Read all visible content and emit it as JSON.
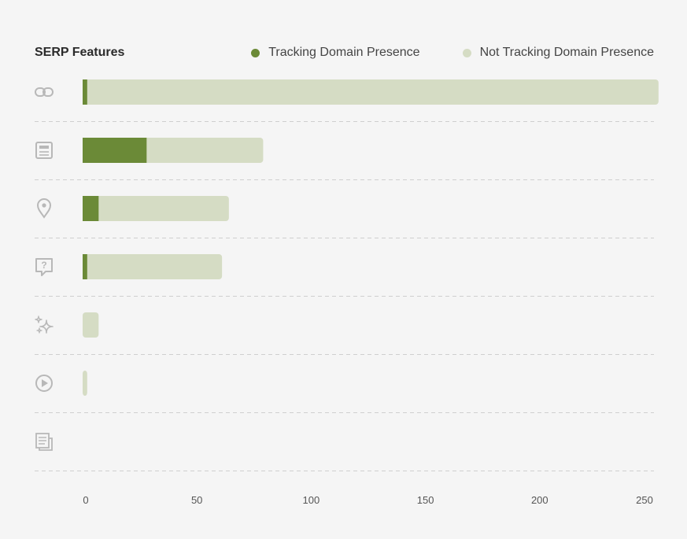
{
  "title": "SERP Features",
  "legend": [
    {
      "label": "Tracking Domain Presence",
      "color": "#6b8a37"
    },
    {
      "label": "Not Tracking Domain Presence",
      "color": "#d5dcc4"
    }
  ],
  "colors": {
    "tracking": "#6b8a37",
    "not_tracking": "#d5dcc4",
    "icon": "#b8b8b8",
    "grid": "#cfcfcf"
  },
  "chart_data": {
    "type": "bar",
    "orientation": "horizontal",
    "stacked": true,
    "title": "SERP Features",
    "categories": [
      "link-icon",
      "article-icon",
      "location-pin-icon",
      "question-icon",
      "sparkle-icon",
      "video-icon",
      "news-icon"
    ],
    "series": [
      {
        "name": "Tracking Domain Presence",
        "values": [
          2,
          28,
          7,
          2,
          0,
          0,
          0
        ]
      },
      {
        "name": "Not Tracking Domain Presence",
        "values": [
          250,
          51,
          57,
          59,
          7,
          2,
          0
        ]
      }
    ],
    "xlim": [
      0,
      250
    ],
    "xticks": [
      0,
      50,
      100,
      150,
      200,
      250
    ],
    "grid": "horizontal-dashed",
    "legend_position": "top-right"
  }
}
